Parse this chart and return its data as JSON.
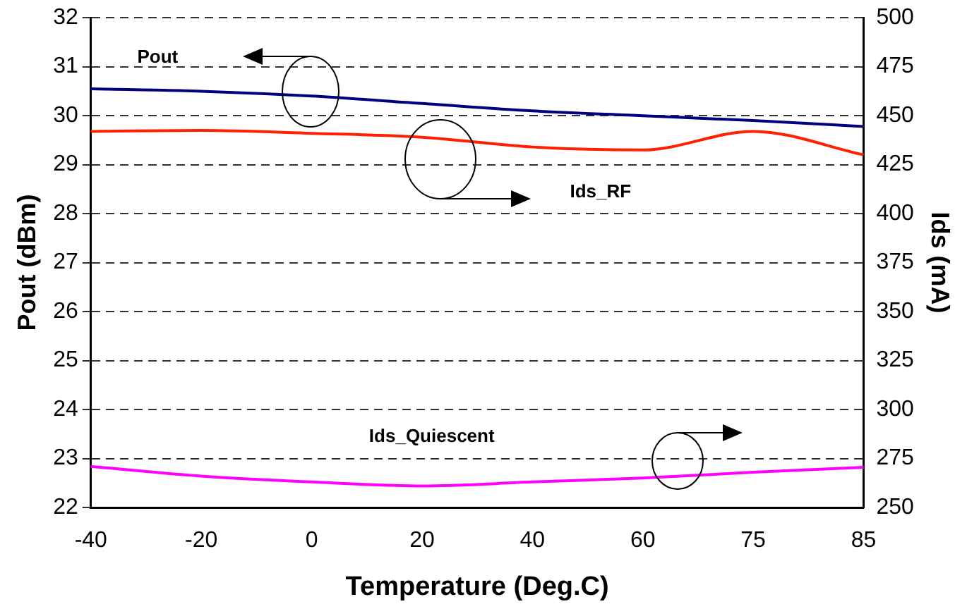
{
  "chart_data": {
    "type": "line",
    "xlabel": "Temperature (Deg.C)",
    "ylabel": "Pout (dBm)",
    "y2label": "Ids (mA)",
    "categories": [
      "-40",
      "-20",
      "0",
      "20",
      "40",
      "60",
      "75",
      "85"
    ],
    "series": [
      {
        "name": "Pout",
        "color": "#000080",
        "values": [
          30.55,
          30.5,
          30.4,
          30.25,
          30.1,
          30.0,
          29.9,
          29.78
        ]
      },
      {
        "name": "Ids_RF",
        "color": "#ff2000",
        "axis": "y2",
        "values": [
          442,
          442.5,
          441,
          439,
          434,
          432.5,
          442,
          430
        ]
      },
      {
        "name": "Ids_Quiescent",
        "color": "#ff00ff",
        "axis": "y2",
        "values": [
          271,
          266,
          263,
          261,
          263,
          265,
          268,
          270.5
        ]
      }
    ],
    "ylim": [
      22,
      32
    ],
    "yticks": [
      22,
      23,
      24,
      25,
      26,
      27,
      28,
      29,
      30,
      31,
      32
    ],
    "y2lim": [
      250,
      500
    ],
    "y2ticks": [
      250,
      275,
      300,
      325,
      350,
      375,
      400,
      425,
      450,
      475,
      500
    ],
    "grid": "y",
    "legend": false,
    "marker": "none",
    "line_style": "solid"
  }
}
